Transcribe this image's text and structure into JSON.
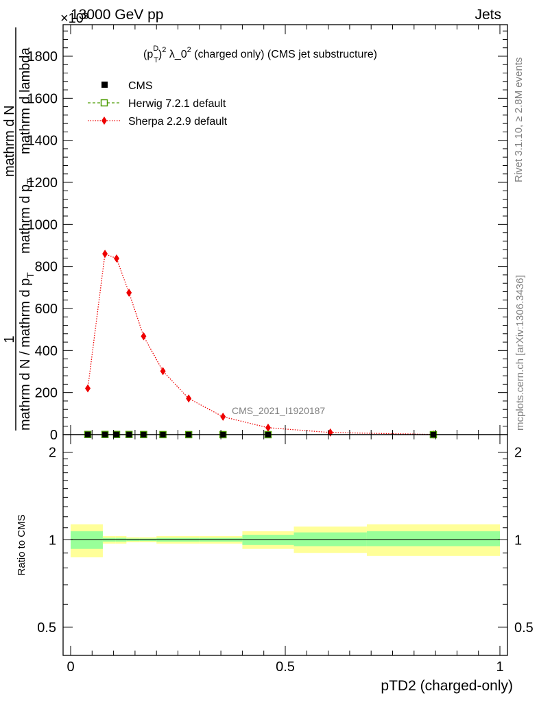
{
  "header": {
    "energy_label": "13000 GeV pp",
    "process_label": "Jets",
    "exponent_label": "×10³",
    "rivet_label": "Rivet 3.1.10, ≥ 2.8M events",
    "mcplots_label": "mcplots.cern.ch [arXiv:1306.3436]",
    "analysis_label": "CMS_2021_I1920187"
  },
  "chart_data": [
    {
      "type": "line",
      "title": "(p_T^D)² λ_0² (charged only) (CMS jet substructure)",
      "title_parts": {
        "a": "(p",
        "sup_d": "D",
        "sub_t": "T",
        "b": ")",
        "sup_2": "2",
        "c": " λ_0",
        "sup_2b": "2",
        "d": " (charged only) (CMS jet substructure)"
      },
      "ylabel_parts": {
        "line1": "1",
        "line2": "mathrm d N / mathrm d p",
        "line3": "mathrm d N",
        "line4": "mathrm d p",
        "line5": "mathrm d lambda"
      },
      "ylabel_subscripts": {
        "t1": "T",
        "t2": "T"
      },
      "xlim": [
        0,
        1
      ],
      "ylim": [
        0,
        1950
      ],
      "y_scale_note": "×10³",
      "y_ticks": [
        0,
        200,
        400,
        600,
        800,
        1000,
        1200,
        1400,
        1600,
        1800
      ],
      "y_tick_labels": [
        "0",
        "200",
        "400",
        "600",
        "800",
        "1000",
        "1200",
        "1400",
        "1600",
        "1800"
      ],
      "legend_position": "top-left",
      "series": [
        {
          "name": "CMS",
          "color": "#000000",
          "marker": "filled-square",
          "x": [
            0.04,
            0.08,
            0.107,
            0.136,
            0.17,
            0.215,
            0.275,
            0.355,
            0.46,
            0.845
          ],
          "values": [
            0.85,
            0.86,
            0.84,
            0.67,
            0.47,
            0.3,
            0.17,
            0.08,
            0.03,
            0.0
          ]
        },
        {
          "name": "Herwig 7.2.1 default",
          "color": "#4b9b00",
          "marker": "open-square",
          "x": [
            0.04,
            0.08,
            0.107,
            0.136,
            0.17,
            0.215,
            0.275,
            0.355,
            0.46,
            0.845
          ],
          "values": [
            0.85,
            0.86,
            0.84,
            0.67,
            0.47,
            0.3,
            0.17,
            0.08,
            0.03,
            0.0
          ]
        },
        {
          "name": "Sherpa 2.2.9 default",
          "color": "#ee0000",
          "marker": "diamond",
          "x": [
            0.04,
            0.08,
            0.107,
            0.136,
            0.17,
            0.215,
            0.275,
            0.355,
            0.46,
            0.605,
            0.845
          ],
          "values": [
            220,
            860,
            838,
            675,
            468,
            302,
            172,
            85,
            33,
            10,
            1
          ]
        }
      ]
    },
    {
      "type": "area",
      "ylabel": "Ratio to CMS",
      "xlabel": "pTD2 (charged-only)",
      "xlim": [
        0,
        1
      ],
      "ylim": [
        0.4,
        2.3
      ],
      "y_scale": "log",
      "y_tick_labels": [
        "0.5",
        "1",
        "2"
      ],
      "x_tick_labels": [
        "0",
        "0.5",
        "1"
      ],
      "reference_line": 1,
      "band_colors": {
        "inner": "#99ff99",
        "outer": "#ffff99"
      },
      "bins": [
        {
          "x0": 0.0,
          "x1": 0.075,
          "inner": [
            0.93,
            1.07
          ],
          "outer": [
            0.87,
            1.13
          ]
        },
        {
          "x0": 0.075,
          "x1": 0.105,
          "inner": [
            0.985,
            1.015
          ],
          "outer": [
            0.97,
            1.03
          ]
        },
        {
          "x0": 0.105,
          "x1": 0.13,
          "inner": [
            0.985,
            1.015
          ],
          "outer": [
            0.97,
            1.03
          ]
        },
        {
          "x0": 0.13,
          "x1": 0.16,
          "inner": [
            0.99,
            1.01
          ],
          "outer": [
            0.98,
            1.02
          ]
        },
        {
          "x0": 0.16,
          "x1": 0.2,
          "inner": [
            0.99,
            1.01
          ],
          "outer": [
            0.98,
            1.02
          ]
        },
        {
          "x0": 0.2,
          "x1": 0.25,
          "inner": [
            0.985,
            1.015
          ],
          "outer": [
            0.97,
            1.03
          ]
        },
        {
          "x0": 0.25,
          "x1": 0.3,
          "inner": [
            0.985,
            1.015
          ],
          "outer": [
            0.97,
            1.03
          ]
        },
        {
          "x0": 0.3,
          "x1": 0.4,
          "inner": [
            0.985,
            1.015
          ],
          "outer": [
            0.97,
            1.03
          ]
        },
        {
          "x0": 0.4,
          "x1": 0.52,
          "inner": [
            0.96,
            1.04
          ],
          "outer": [
            0.93,
            1.07
          ]
        },
        {
          "x0": 0.52,
          "x1": 0.69,
          "inner": [
            0.95,
            1.06
          ],
          "outer": [
            0.9,
            1.11
          ]
        },
        {
          "x0": 0.69,
          "x1": 1.0,
          "inner": [
            0.95,
            1.07
          ],
          "outer": [
            0.88,
            1.13
          ]
        }
      ]
    }
  ]
}
